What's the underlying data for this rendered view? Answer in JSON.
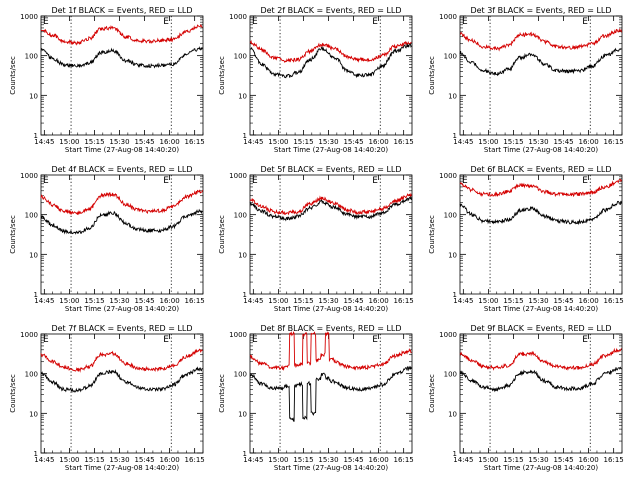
{
  "xlabel": "Start Time (27-Aug-08 14:40:20)",
  "ylabel": "Counts/sec",
  "chart_data": [
    {
      "type": "line",
      "title": "Det 1f BLACK = Events, RED = LLD",
      "scale": "log",
      "ylim": [
        1,
        1000
      ],
      "yticks": [
        "1",
        "10",
        "100",
        "1000"
      ],
      "xlim": [
        "14:43",
        "16:20"
      ],
      "xticks": [
        "14:45",
        "15:00",
        "15:15",
        "15:30",
        "15:45",
        "16:00",
        "16:15"
      ],
      "vlines": [
        "15:01",
        "16:01"
      ],
      "corner_marks": [
        "E",
        "E"
      ],
      "x": [
        "14:43",
        "14:50",
        "14:57",
        "15:05",
        "15:12",
        "15:19",
        "15:26",
        "15:34",
        "15:41",
        "15:48",
        "15:55",
        "16:02",
        "16:10",
        "16:18"
      ],
      "series": [
        {
          "color": "#d40000",
          "values": [
            450,
            330,
            230,
            210,
            270,
            480,
            500,
            300,
            240,
            230,
            240,
            260,
            400,
            560
          ]
        },
        {
          "color": "#000000",
          "values": [
            140,
            85,
            58,
            55,
            65,
            120,
            135,
            75,
            58,
            56,
            56,
            62,
            110,
            150
          ]
        }
      ]
    },
    {
      "type": "line",
      "title": "Det 2f BLACK = Events, RED = LLD",
      "scale": "log",
      "ylim": [
        1,
        1000
      ],
      "yticks": [
        "1",
        "10",
        "100",
        "1000"
      ],
      "xlim": [
        "14:43",
        "16:20"
      ],
      "xticks": [
        "14:45",
        "15:00",
        "15:15",
        "15:30",
        "15:45",
        "16:00",
        "16:15"
      ],
      "vlines": [
        "15:01",
        "16:01"
      ],
      "corner_marks": [
        "E",
        "E"
      ],
      "x": [
        "14:43",
        "14:50",
        "14:57",
        "15:05",
        "15:12",
        "15:19",
        "15:26",
        "15:34",
        "15:41",
        "15:48",
        "15:55",
        "16:02",
        "16:10",
        "16:18"
      ],
      "series": [
        {
          "color": "#d40000",
          "values": [
            220,
            140,
            90,
            75,
            80,
            130,
            190,
            150,
            95,
            80,
            78,
            100,
            170,
            210
          ]
        },
        {
          "color": "#000000",
          "values": [
            150,
            60,
            35,
            30,
            38,
            80,
            150,
            90,
            42,
            32,
            33,
            55,
            130,
            180
          ]
        }
      ]
    },
    {
      "type": "line",
      "title": "Det 3f BLACK = Events, RED = LLD",
      "scale": "log",
      "ylim": [
        1,
        1000
      ],
      "yticks": [
        "1",
        "10",
        "100",
        "1000"
      ],
      "xlim": [
        "14:43",
        "16:20"
      ],
      "xticks": [
        "14:45",
        "15:00",
        "15:15",
        "15:30",
        "15:45",
        "16:00",
        "16:15"
      ],
      "vlines": [
        "15:01",
        "16:01"
      ],
      "corner_marks": [
        "E",
        "E"
      ],
      "x": [
        "14:43",
        "14:50",
        "14:57",
        "15:05",
        "15:12",
        "15:19",
        "15:26",
        "15:34",
        "15:41",
        "15:48",
        "15:55",
        "16:02",
        "16:10",
        "16:18"
      ],
      "series": [
        {
          "color": "#d40000",
          "values": [
            350,
            240,
            170,
            150,
            180,
            330,
            350,
            220,
            170,
            160,
            170,
            200,
            320,
            420
          ]
        },
        {
          "color": "#000000",
          "values": [
            120,
            65,
            42,
            35,
            45,
            90,
            110,
            60,
            42,
            40,
            42,
            55,
            100,
            140
          ]
        }
      ]
    },
    {
      "type": "line",
      "title": "Det 4f BLACK = Events, RED = LLD",
      "scale": "log",
      "ylim": [
        1,
        1000
      ],
      "yticks": [
        "1",
        "10",
        "100",
        "1000"
      ],
      "xlim": [
        "14:43",
        "16:20"
      ],
      "xticks": [
        "14:45",
        "15:00",
        "15:15",
        "15:30",
        "15:45",
        "16:00",
        "16:15"
      ],
      "vlines": [
        "15:01",
        "16:01"
      ],
      "corner_marks": [
        "E",
        "E"
      ],
      "x": [
        "14:43",
        "14:50",
        "14:57",
        "15:05",
        "15:12",
        "15:19",
        "15:26",
        "15:34",
        "15:41",
        "15:48",
        "15:55",
        "16:02",
        "16:10",
        "16:18"
      ],
      "series": [
        {
          "color": "#d40000",
          "values": [
            280,
            180,
            120,
            110,
            140,
            300,
            330,
            180,
            130,
            120,
            125,
            160,
            280,
            380
          ]
        },
        {
          "color": "#000000",
          "values": [
            90,
            55,
            38,
            35,
            45,
            95,
            110,
            60,
            42,
            40,
            40,
            50,
            90,
            120
          ]
        }
      ]
    },
    {
      "type": "line",
      "title": "Det 5f BLACK = Events, RED = LLD",
      "scale": "log",
      "ylim": [
        1,
        1000
      ],
      "yticks": [
        "1",
        "10",
        "100",
        "1000"
      ],
      "xlim": [
        "14:43",
        "16:20"
      ],
      "xticks": [
        "14:45",
        "15:00",
        "15:15",
        "15:30",
        "15:45",
        "16:00",
        "16:15"
      ],
      "vlines": [
        "15:01",
        "16:01"
      ],
      "corner_marks": [
        "E",
        "E"
      ],
      "x": [
        "14:43",
        "14:50",
        "14:57",
        "15:05",
        "15:12",
        "15:19",
        "15:26",
        "15:34",
        "15:41",
        "15:48",
        "15:55",
        "16:02",
        "16:10",
        "16:18"
      ],
      "series": [
        {
          "color": "#d40000",
          "values": [
            240,
            160,
            120,
            110,
            120,
            190,
            260,
            190,
            130,
            115,
            115,
            140,
            220,
            300
          ]
        },
        {
          "color": "#000000",
          "values": [
            190,
            120,
            90,
            80,
            90,
            150,
            210,
            150,
            100,
            88,
            88,
            110,
            180,
            250
          ]
        }
      ]
    },
    {
      "type": "line",
      "title": "Det 6f BLACK = Events, RED = LLD",
      "scale": "log",
      "ylim": [
        1,
        1000
      ],
      "yticks": [
        "1",
        "10",
        "100",
        "1000"
      ],
      "xlim": [
        "14:43",
        "16:20"
      ],
      "xticks": [
        "14:45",
        "15:00",
        "15:15",
        "15:30",
        "15:45",
        "16:00",
        "16:15"
      ],
      "vlines": [
        "15:01",
        "16:01"
      ],
      "corner_marks": [
        "E",
        "E"
      ],
      "x": [
        "14:43",
        "14:50",
        "14:57",
        "15:05",
        "15:12",
        "15:19",
        "15:26",
        "15:34",
        "15:41",
        "15:48",
        "15:55",
        "16:02",
        "16:10",
        "16:18"
      ],
      "series": [
        {
          "color": "#d40000",
          "values": [
            600,
            420,
            330,
            320,
            380,
            560,
            520,
            380,
            330,
            320,
            330,
            360,
            500,
            700
          ]
        },
        {
          "color": "#000000",
          "values": [
            180,
            100,
            70,
            65,
            75,
            125,
            140,
            90,
            70,
            65,
            65,
            75,
            130,
            200
          ]
        }
      ]
    },
    {
      "type": "line",
      "title": "Det 7f BLACK = Events, RED = LLD",
      "scale": "log",
      "ylim": [
        1,
        1000
      ],
      "yticks": [
        "1",
        "10",
        "100",
        "1000"
      ],
      "xlim": [
        "14:43",
        "16:20"
      ],
      "xticks": [
        "14:45",
        "15:00",
        "15:15",
        "15:30",
        "15:45",
        "16:00",
        "16:15"
      ],
      "vlines": [
        "15:01",
        "16:01"
      ],
      "corner_marks": [
        "E",
        "E"
      ],
      "x": [
        "14:43",
        "14:50",
        "14:57",
        "15:05",
        "15:12",
        "15:19",
        "15:26",
        "15:34",
        "15:41",
        "15:48",
        "15:55",
        "16:02",
        "16:10",
        "16:18"
      ],
      "series": [
        {
          "color": "#d40000",
          "values": [
            300,
            200,
            140,
            125,
            150,
            300,
            320,
            180,
            140,
            130,
            130,
            160,
            270,
            380
          ]
        },
        {
          "color": "#000000",
          "values": [
            100,
            60,
            40,
            38,
            48,
            100,
            115,
            62,
            44,
            40,
            41,
            52,
            95,
            130
          ]
        }
      ]
    },
    {
      "type": "line",
      "title": "Det 8f BLACK = Events, RED = LLD",
      "scale": "log",
      "ylim": [
        1,
        1000
      ],
      "yticks": [
        "1",
        "10",
        "100",
        "1000"
      ],
      "xlim": [
        "14:43",
        "16:20"
      ],
      "xticks": [
        "14:45",
        "15:00",
        "15:15",
        "15:30",
        "15:45",
        "16:00",
        "16:15"
      ],
      "vlines": [
        "15:01",
        "16:01"
      ],
      "corner_marks": [
        "E",
        "E"
      ],
      "x": [
        "14:43",
        "14:50",
        "14:57",
        "15:02",
        "15:05",
        "15:08",
        "15:11",
        "15:13",
        "15:16",
        "15:18",
        "15:21",
        "15:24",
        "15:27",
        "15:29",
        "15:32",
        "15:34",
        "15:41",
        "15:48",
        "15:55",
        "16:02",
        "16:10",
        "16:18"
      ],
      "series": [
        {
          "color": "#d40000",
          "values": [
            260,
            180,
            140,
            140,
            150,
            1000,
            160,
            170,
            1000,
            180,
            1000,
            220,
            300,
            1000,
            230,
            200,
            150,
            140,
            145,
            170,
            280,
            370
          ]
        },
        {
          "color": "#000000",
          "values": [
            95,
            55,
            42,
            42,
            48,
            7,
            50,
            55,
            8,
            58,
            10,
            70,
            95,
            80,
            65,
            60,
            44,
            40,
            42,
            52,
            95,
            135
          ]
        }
      ]
    },
    {
      "type": "line",
      "title": "Det 9f BLACK = Events, RED = LLD",
      "scale": "log",
      "ylim": [
        1,
        1000
      ],
      "yticks": [
        "1",
        "10",
        "100",
        "1000"
      ],
      "xlim": [
        "14:43",
        "16:20"
      ],
      "xticks": [
        "14:45",
        "15:00",
        "15:15",
        "15:30",
        "15:45",
        "16:00",
        "16:15"
      ],
      "vlines": [
        "15:01",
        "16:01"
      ],
      "corner_marks": [
        "E",
        "E"
      ],
      "x": [
        "14:43",
        "14:50",
        "14:57",
        "15:05",
        "15:12",
        "15:19",
        "15:26",
        "15:34",
        "15:41",
        "15:48",
        "15:55",
        "16:02",
        "16:10",
        "16:18"
      ],
      "series": [
        {
          "color": "#d40000",
          "values": [
            330,
            220,
            150,
            140,
            160,
            310,
            320,
            190,
            150,
            140,
            140,
            170,
            290,
            400
          ]
        },
        {
          "color": "#000000",
          "values": [
            110,
            65,
            45,
            40,
            50,
            105,
            115,
            65,
            46,
            42,
            42,
            55,
            100,
            135
          ]
        }
      ]
    }
  ]
}
